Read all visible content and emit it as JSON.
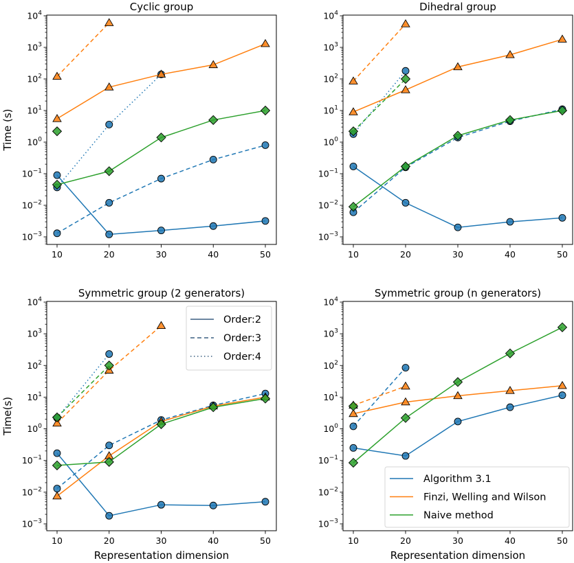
{
  "figure": {
    "shared_x_label": "Representation dimension",
    "legend_orders": {
      "placement": "top-right",
      "panel": 2,
      "entries": [
        {
          "label": "Order:2",
          "style": "solid"
        },
        {
          "label": "Order:3",
          "style": "dashed"
        },
        {
          "label": "Order:4",
          "style": "dotted"
        }
      ]
    },
    "legend_methods": {
      "placement": "lower-right",
      "panel": 3,
      "entries": [
        {
          "label": "Algorithm 3.1",
          "color": "#1f77b4"
        },
        {
          "label": "Finzi, Welling and Wilson",
          "color": "#ff7f0e"
        },
        {
          "label": "Naive method",
          "color": "#2ca02c"
        }
      ]
    },
    "colors": {
      "algorithm": "#1f77b4",
      "finzi": "#ff7f0e",
      "naive": "#2ca02c"
    }
  },
  "chart_data": [
    {
      "type": "line",
      "title": "Cyclic group",
      "xlabel": "",
      "ylabel": "Time (s)",
      "yscale": "log",
      "ylim": [
        0.0006,
        10000
      ],
      "xlim": [
        8,
        52
      ],
      "xticks": [
        10,
        20,
        30,
        40,
        50
      ],
      "yticks": [
        "10^4",
        "10^3",
        "10^2",
        "10^1",
        "10^0",
        "10^-1",
        "10^-2",
        "10^-3"
      ],
      "grid": false,
      "series": [
        {
          "name": "Algorithm 3.1, Order:2",
          "method": "algorithm",
          "order": 2,
          "x": [
            10,
            20,
            30,
            40,
            50
          ],
          "values": [
            0.09,
            0.0012,
            0.0016,
            0.0022,
            0.0032
          ]
        },
        {
          "name": "Algorithm 3.1, Order:3",
          "method": "algorithm",
          "order": 3,
          "x": [
            10,
            20,
            30,
            40,
            50
          ],
          "values": [
            0.0013,
            0.012,
            0.07,
            0.28,
            0.8
          ]
        },
        {
          "name": "Algorithm 3.1, Order:4",
          "method": "algorithm",
          "order": 4,
          "x": [
            10,
            20,
            30
          ],
          "values": [
            0.037,
            3.6,
            140
          ]
        },
        {
          "name": "Finzi, Welling and Wilson, Order:2",
          "method": "finzi",
          "order": 2,
          "x": [
            10,
            20,
            30,
            40,
            50
          ],
          "values": [
            5.5,
            55,
            140,
            280,
            1300
          ]
        },
        {
          "name": "Finzi, Welling and Wilson, Order:3",
          "method": "finzi",
          "order": 3,
          "x": [
            10,
            20
          ],
          "values": [
            120,
            6000
          ]
        },
        {
          "name": "Naive method, Order:2",
          "method": "naive",
          "order": 2,
          "x": [
            10,
            20,
            30,
            40,
            50
          ],
          "values": [
            0.045,
            0.12,
            1.4,
            5,
            10
          ]
        },
        {
          "name": "Naive method, Order:3",
          "method": "naive",
          "order": 3,
          "x": [
            10
          ],
          "values": [
            2.2
          ]
        }
      ]
    },
    {
      "type": "line",
      "title": "Dihedral group",
      "xlabel": "",
      "ylabel": "",
      "yscale": "log",
      "ylim": [
        0.0006,
        10000
      ],
      "xlim": [
        8,
        52
      ],
      "xticks": [
        10,
        20,
        30,
        40,
        50
      ],
      "yticks": [
        "10^4",
        "10^3",
        "10^2",
        "10^1",
        "10^0",
        "10^-1",
        "10^-2",
        "10^-3"
      ],
      "grid": false,
      "series": [
        {
          "name": "Algorithm 3.1, Order:2",
          "method": "algorithm",
          "order": 2,
          "x": [
            10,
            20,
            30,
            40,
            50
          ],
          "values": [
            0.17,
            0.012,
            0.002,
            0.003,
            0.004
          ]
        },
        {
          "name": "Algorithm 3.1, Order:3",
          "method": "algorithm",
          "order": 3,
          "x": [
            10,
            20,
            30,
            40,
            50
          ],
          "values": [
            0.006,
            0.16,
            1.4,
            4.6,
            11
          ]
        },
        {
          "name": "Algorithm 3.1, Order:4",
          "method": "algorithm",
          "order": 4,
          "x": [
            10,
            20
          ],
          "values": [
            1.8,
            180
          ]
        },
        {
          "name": "Finzi, Welling and Wilson, Order:2",
          "method": "finzi",
          "order": 2,
          "x": [
            10,
            20,
            30,
            40,
            50
          ],
          "values": [
            9,
            45,
            240,
            580,
            1800
          ]
        },
        {
          "name": "Finzi, Welling and Wilson, Order:3",
          "method": "finzi",
          "order": 3,
          "x": [
            10,
            20
          ],
          "values": [
            85,
            5500
          ]
        },
        {
          "name": "Naive method, Order:2",
          "method": "naive",
          "order": 2,
          "x": [
            10,
            20,
            30,
            40,
            50
          ],
          "values": [
            0.009,
            0.17,
            1.6,
            5,
            10
          ]
        },
        {
          "name": "Naive method, Order:3",
          "method": "naive",
          "order": 3,
          "x": [
            10,
            20
          ],
          "values": [
            2.2,
            100
          ]
        }
      ]
    },
    {
      "type": "line",
      "title": "Symmetric group (2 generators)",
      "xlabel": "Representation dimension",
      "ylabel": "Time(s)",
      "yscale": "log",
      "ylim": [
        0.0006,
        10000
      ],
      "xlim": [
        8,
        52
      ],
      "xticks": [
        10,
        20,
        30,
        40,
        50
      ],
      "yticks": [
        "10^4",
        "10^3",
        "10^2",
        "10^1",
        "10^0",
        "10^-1",
        "10^-2",
        "10^-3"
      ],
      "grid": false,
      "legend": "top-right",
      "series": [
        {
          "name": "Algorithm 3.1, Order:2",
          "method": "algorithm",
          "order": 2,
          "x": [
            10,
            20,
            30,
            40,
            50
          ],
          "values": [
            0.17,
            0.0018,
            0.004,
            0.0038,
            0.005
          ]
        },
        {
          "name": "Algorithm 3.1, Order:3",
          "method": "algorithm",
          "order": 3,
          "x": [
            10,
            20,
            30,
            40,
            50
          ],
          "values": [
            0.013,
            0.3,
            1.9,
            5.5,
            13
          ]
        },
        {
          "name": "Algorithm 3.1, Order:4",
          "method": "algorithm",
          "order": 4,
          "x": [
            10,
            20
          ],
          "values": [
            2.2,
            230
          ]
        },
        {
          "name": "Finzi, Welling and Wilson, Order:2",
          "method": "finzi",
          "order": 2,
          "x": [
            10,
            20,
            30,
            40,
            50
          ],
          "values": [
            0.0075,
            0.14,
            1.7,
            5.2,
            10
          ]
        },
        {
          "name": "Finzi, Welling and Wilson, Order:3",
          "method": "finzi",
          "order": 3,
          "x": [
            10,
            20,
            30
          ],
          "values": [
            1.5,
            70,
            1800
          ]
        },
        {
          "name": "Naive method, Order:2",
          "method": "naive",
          "order": 2,
          "x": [
            10,
            20,
            30,
            40,
            50
          ],
          "values": [
            0.07,
            0.09,
            1.4,
            4.8,
            9
          ]
        },
        {
          "name": "Naive method, Order:3",
          "method": "naive",
          "order": 3,
          "x": [
            10,
            20
          ],
          "values": [
            2.3,
            100
          ]
        }
      ]
    },
    {
      "type": "line",
      "title": "Symmetric group (n generators)",
      "xlabel": "Representation dimension",
      "ylabel": "",
      "yscale": "log",
      "ylim": [
        0.0006,
        10000
      ],
      "xlim": [
        8,
        52
      ],
      "xticks": [
        10,
        20,
        30,
        40,
        50
      ],
      "yticks": [
        "10^4",
        "10^3",
        "10^2",
        "10^1",
        "10^0",
        "10^-1",
        "10^-2",
        "10^-3"
      ],
      "grid": false,
      "legend": "lower-right",
      "series": [
        {
          "name": "Algorithm 3.1, Order:2",
          "method": "algorithm",
          "order": 2,
          "x": [
            10,
            20,
            30,
            40,
            50
          ],
          "values": [
            0.25,
            0.14,
            1.7,
            4.8,
            11.5
          ]
        },
        {
          "name": "Algorithm 3.1, Order:3",
          "method": "algorithm",
          "order": 3,
          "x": [
            10,
            20
          ],
          "values": [
            1.2,
            85
          ]
        },
        {
          "name": "Finzi, Welling and Wilson, Order:2",
          "method": "finzi",
          "order": 2,
          "x": [
            10,
            20,
            30,
            40,
            50
          ],
          "values": [
            3,
            7,
            11,
            16,
            23
          ]
        },
        {
          "name": "Finzi, Welling and Wilson, Order:3",
          "method": "finzi",
          "order": 3,
          "x": [
            10,
            20
          ],
          "values": [
            5.5,
            22
          ]
        },
        {
          "name": "Naive method, Order:2",
          "method": "naive",
          "order": 2,
          "x": [
            10,
            20,
            30,
            40,
            50
          ],
          "values": [
            0.085,
            2.2,
            30,
            240,
            1600
          ]
        },
        {
          "name": "Naive method, Order:3",
          "method": "naive",
          "order": 3,
          "x": [
            10
          ],
          "values": [
            5.2
          ]
        }
      ]
    }
  ]
}
